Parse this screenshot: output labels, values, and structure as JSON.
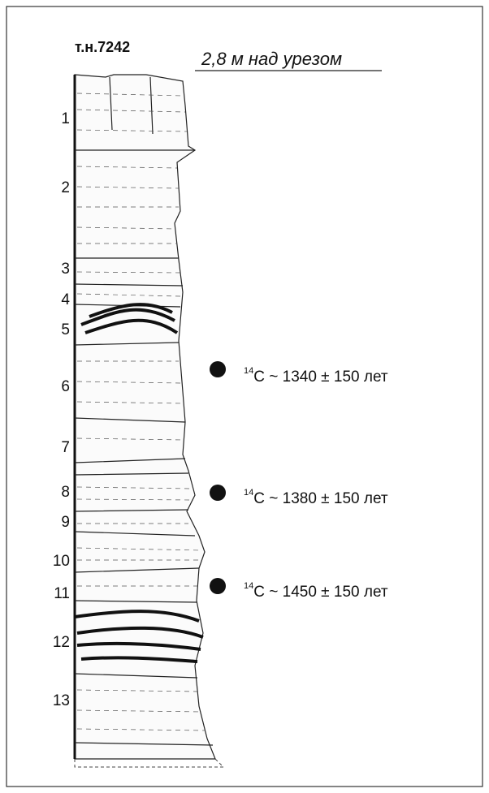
{
  "header": {
    "title": "т.н.7242",
    "subtitle": "2,8 м над урезом"
  },
  "layers": [
    "1",
    "2",
    "3",
    "4",
    "5",
    "6",
    "7",
    "8",
    "9",
    "10",
    "11",
    "12",
    "13"
  ],
  "dates": [
    {
      "isotope": "14",
      "text": "C ~ 1340 ± 150 лет"
    },
    {
      "isotope": "14",
      "text": "C ~ 1380 ± 150 лет"
    },
    {
      "isotope": "14",
      "text": "C ~ 1450 ± 150 лет"
    }
  ]
}
